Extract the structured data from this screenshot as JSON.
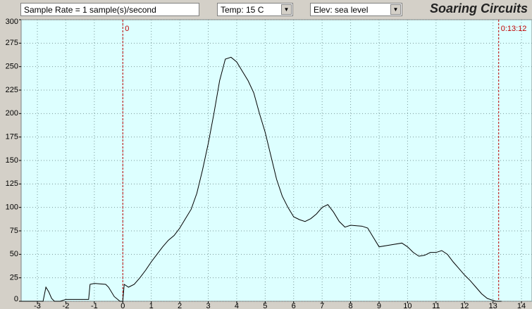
{
  "toolbar": {
    "sample_rate": "Sample Rate =  1 sample(s)/second",
    "temp": "Temp:  15 C",
    "elev": "Elev: sea level",
    "brand": "Soaring Circuits"
  },
  "chart_data": {
    "type": "line",
    "color": "#000000",
    "grid": true,
    "xlim": [
      -3.57,
      14.37
    ],
    "ylim": [
      0,
      300
    ],
    "xticks": [
      -3,
      -2,
      -1,
      0,
      1,
      2,
      3,
      4,
      5,
      6,
      7,
      8,
      9,
      10,
      11,
      12,
      13,
      14
    ],
    "yticks": [
      0,
      25,
      50,
      75,
      100,
      125,
      150,
      175,
      200,
      225,
      250,
      275,
      300
    ],
    "markers": [
      {
        "x": 0,
        "label": "0"
      },
      {
        "x": 13.2,
        "label": "0:13:12"
      }
    ],
    "x": [
      -3.57,
      -3,
      -2.8,
      -2.7,
      -2.6,
      -2.5,
      -2.4,
      -2.2,
      -2,
      -1.5,
      -1.2,
      -1.15,
      -1,
      -0.6,
      -0.5,
      -0.3,
      -0.1,
      0,
      0.05,
      0.2,
      0.4,
      0.6,
      0.8,
      1,
      1.2,
      1.4,
      1.6,
      1.8,
      2,
      2.2,
      2.4,
      2.6,
      2.8,
      3,
      3.2,
      3.4,
      3.6,
      3.8,
      4,
      4.2,
      4.4,
      4.6,
      4.8,
      5,
      5.2,
      5.4,
      5.6,
      5.8,
      6,
      6.2,
      6.4,
      6.6,
      6.8,
      7,
      7.2,
      7.4,
      7.6,
      7.8,
      8,
      8.4,
      8.6,
      8.8,
      9,
      9.4,
      9.8,
      10,
      10.2,
      10.4,
      10.6,
      10.8,
      11,
      11.2,
      11.4,
      11.6,
      11.8,
      12,
      12.2,
      12.4,
      12.6,
      12.8,
      13,
      13.1,
      13.3
    ],
    "values": [
      0,
      0,
      0,
      15,
      10,
      3,
      0,
      0,
      2,
      2,
      2,
      18,
      19,
      18,
      15,
      5,
      0,
      0,
      18,
      15,
      18,
      25,
      33,
      42,
      50,
      58,
      65,
      70,
      78,
      88,
      98,
      115,
      140,
      168,
      200,
      235,
      258,
      260,
      255,
      245,
      235,
      222,
      200,
      180,
      155,
      130,
      112,
      100,
      90,
      87,
      85,
      88,
      93,
      100,
      103,
      95,
      85,
      79,
      81,
      80,
      78,
      68,
      58,
      60,
      62,
      58,
      52,
      48,
      49,
      52,
      52,
      54,
      50,
      42,
      35,
      28,
      22,
      15,
      8,
      3,
      1,
      0,
      0
    ]
  }
}
